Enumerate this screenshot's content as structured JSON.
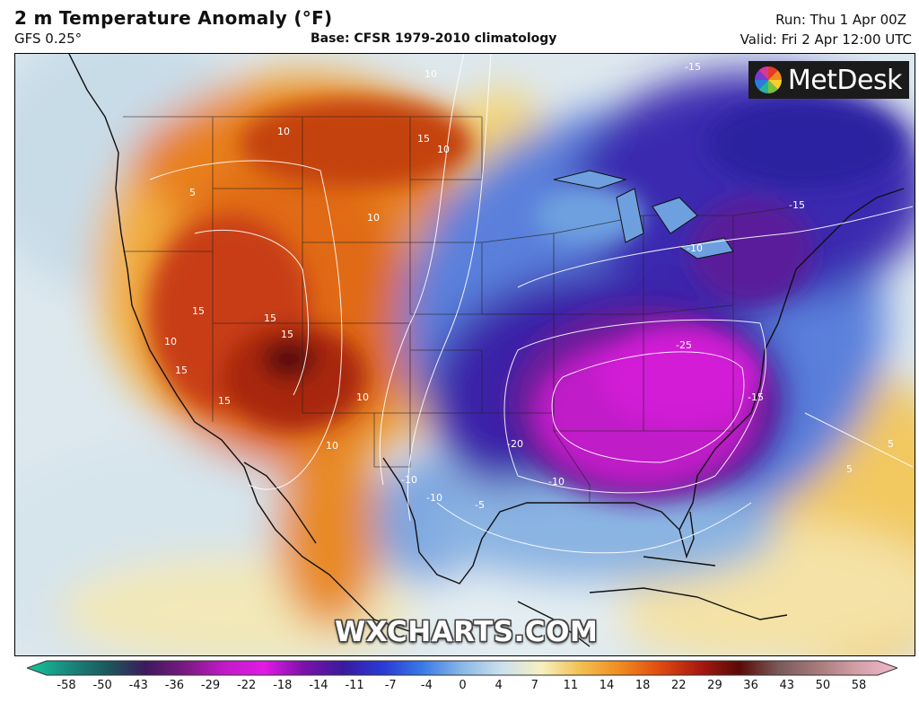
{
  "header": {
    "title": "2 m Temperature Anomaly (°F)",
    "model": "GFS 0.25°",
    "base": "Base: CFSR 1979-2010 climatology",
    "run": "Run: Thu 1 Apr 00Z",
    "valid": "Valid: Fri 2 Apr 12:00 UTC"
  },
  "logo": {
    "text": "MetDesk",
    "icon": "pinwheel-icon"
  },
  "watermark": "WXCHARTS.COM",
  "contour_labels": [
    "-15",
    "-15",
    "-10",
    "-25",
    "-15",
    "-20",
    "-10",
    "-10",
    "-10",
    "-5",
    "5",
    "5",
    "5",
    "10",
    "10",
    "10",
    "15",
    "15",
    "15",
    "15",
    "10",
    "10",
    "10",
    "15",
    "10",
    "15"
  ],
  "legend": {
    "ticks": [
      "-58",
      "-50",
      "-43",
      "-36",
      "-29",
      "-22",
      "-18",
      "-14",
      "-11",
      "-7",
      "-4",
      "0",
      "4",
      "7",
      "11",
      "14",
      "18",
      "22",
      "29",
      "36",
      "43",
      "50",
      "58"
    ],
    "colors": [
      "#14c89a",
      "#1a8a80",
      "#1a5a5c",
      "#3d1a5c",
      "#7a1a82",
      "#c21ac8",
      "#e21ae6",
      "#7a12a8",
      "#3a1aa0",
      "#2a3ad6",
      "#3a7ae6",
      "#8ab8e6",
      "#cce0ee",
      "#f6f0c0",
      "#f2c050",
      "#f08a20",
      "#e04a10",
      "#a81a10",
      "#5a0a08",
      "#7a5a5a",
      "#a87a7a",
      "#d4a0a8",
      "#f0b8cc"
    ]
  }
}
